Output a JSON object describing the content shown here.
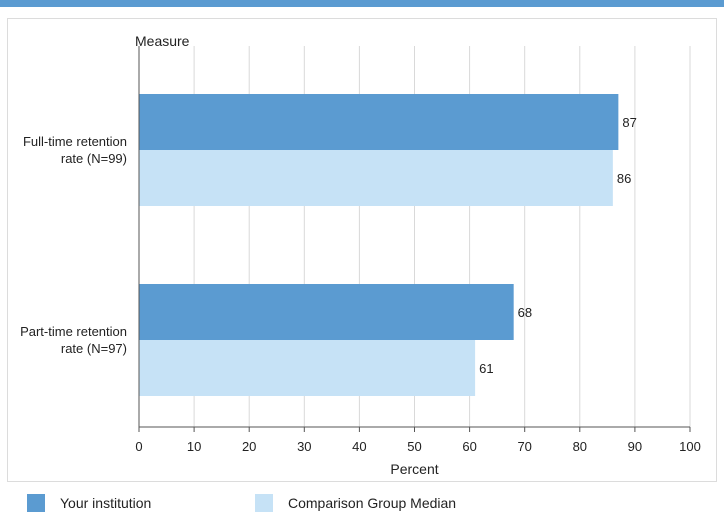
{
  "chart_data": {
    "type": "bar",
    "orientation": "horizontal",
    "title": "",
    "category_axis_label": "Measure",
    "xlabel": "Percent",
    "xlim": [
      0,
      100
    ],
    "x_ticks": [
      "0",
      "10",
      "20",
      "30",
      "40",
      "50",
      "60",
      "70",
      "80",
      "90",
      "100"
    ],
    "grid": true,
    "categories": [
      {
        "line1": "Full-time retention",
        "line2": "rate (N=99)"
      },
      {
        "line1": "Part-time retention",
        "line2": "rate (N=97)"
      }
    ],
    "series": [
      {
        "name": "Your institution",
        "color": "#5b9bd1",
        "values": [
          87,
          68
        ]
      },
      {
        "name": "Comparison Group Median",
        "color": "#c6e2f6",
        "values": [
          86,
          61
        ]
      }
    ],
    "legend_position": "bottom"
  }
}
